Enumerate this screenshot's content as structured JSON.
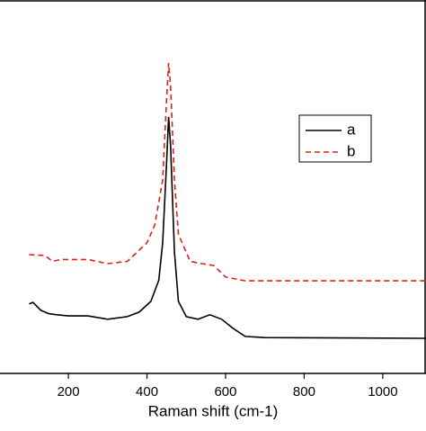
{
  "chart_data": {
    "type": "line",
    "x_label": "Raman shift (cm-1)",
    "xlim": [
      26,
      1110
    ],
    "ylim": [
      0,
      100
    ],
    "xticks": [
      200,
      400,
      600,
      800,
      1000
    ],
    "legend": "upper right",
    "series": [
      {
        "name": "a",
        "color": "#000000",
        "dash": "solid",
        "x": [
          100,
          110,
          130,
          150,
          170,
          200,
          250,
          300,
          350,
          380,
          410,
          430,
          440,
          450,
          455,
          460,
          470,
          480,
          500,
          530,
          560,
          590,
          620,
          650,
          700,
          1110
        ],
        "values": [
          18.6,
          19,
          16.9,
          16,
          15.7,
          15.4,
          15.4,
          14.5,
          15.2,
          16.4,
          19.3,
          25,
          35,
          56.6,
          68.7,
          61,
          32.5,
          19.3,
          15.2,
          14.5,
          15.7,
          14.5,
          12,
          9.9,
          9.6,
          9.4
        ]
      },
      {
        "name": "b",
        "color": "#e0201b",
        "dash": "dashed",
        "x": [
          100,
          140,
          160,
          180,
          250,
          300,
          350,
          400,
          420,
          440,
          450,
          455,
          460,
          470,
          480,
          510,
          540,
          570,
          600,
          650,
          1110
        ],
        "values": [
          31.8,
          31.6,
          30,
          30.5,
          30.5,
          29.4,
          30,
          35,
          39.8,
          51.8,
          73.5,
          83.1,
          77,
          51.8,
          37.3,
          30,
          29.4,
          28.9,
          25.8,
          24.8,
          24.8
        ]
      }
    ]
  }
}
